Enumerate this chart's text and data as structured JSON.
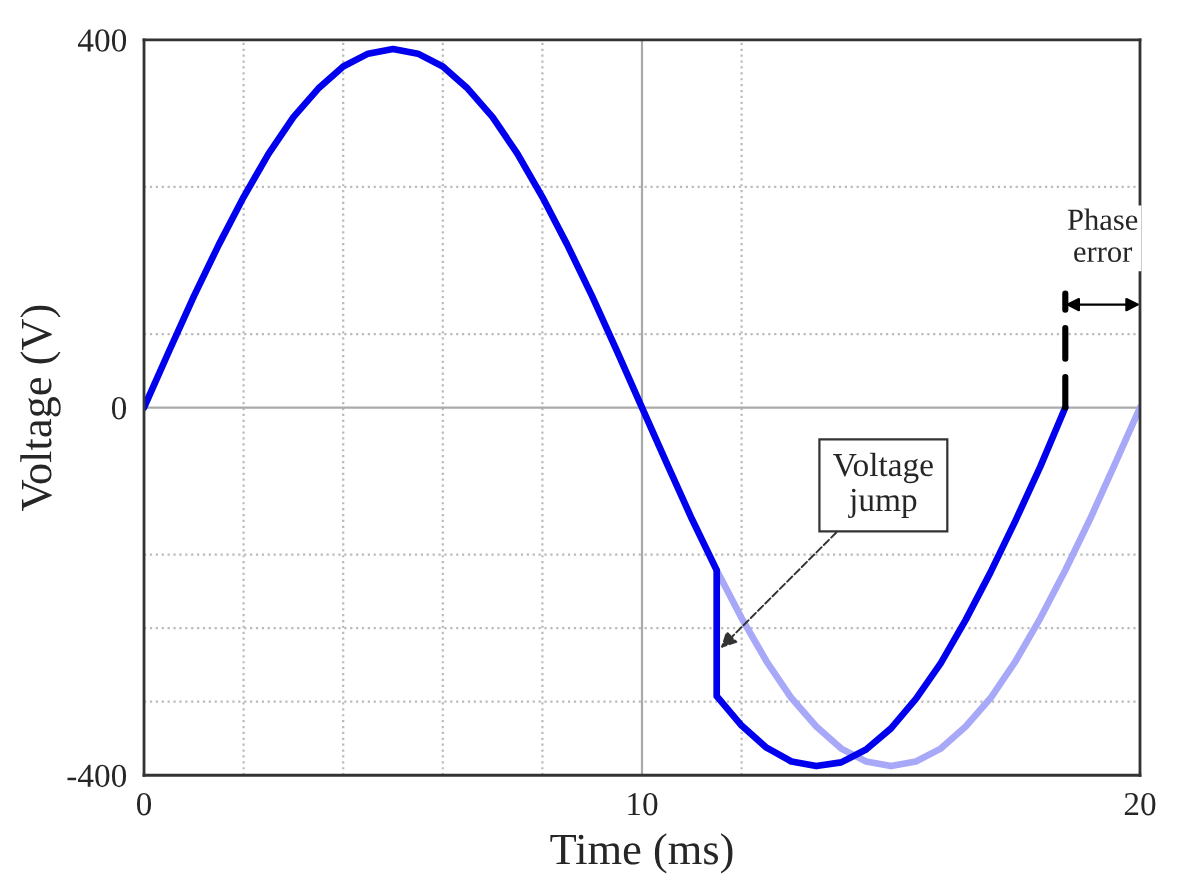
{
  "chart_data": {
    "type": "line",
    "xlabel": "Time (ms)",
    "ylabel": "Voltage (V)",
    "xlim": [
      0,
      20
    ],
    "ylim": [
      -400,
      400
    ],
    "xticks": [
      0,
      {
        "value": 2,
        "label": null
      },
      {
        "value": 4,
        "label": null
      },
      {
        "value": 6,
        "label": null
      },
      {
        "value": 8,
        "label": null
      },
      10,
      {
        "value": 12,
        "label": null
      },
      20
    ],
    "yticks": [
      -400,
      {
        "value": -320,
        "label": null
      },
      {
        "value": -240,
        "label": null
      },
      {
        "value": -160,
        "label": null
      },
      0,
      {
        "value": 80,
        "label": null
      },
      {
        "value": 240,
        "label": null
      },
      400
    ],
    "grid": true,
    "legend": false,
    "marker": "none",
    "line_style": "solid",
    "series": [
      {
        "color": "#a8a8f8",
        "x": [
          11.5,
          12,
          12.5,
          13,
          13.5,
          14,
          14.5,
          15,
          15.5,
          16,
          16.5,
          17,
          17.5,
          18,
          18.5,
          19,
          19.5,
          20
        ],
        "values": [
          -177,
          -229,
          -276,
          -316,
          -347,
          -371,
          -385,
          -390,
          -385,
          -371,
          -347,
          -316,
          -276,
          -229,
          -177,
          -121,
          -61,
          0
        ]
      },
      {
        "color": "#0000ee",
        "x": [
          0,
          0.5,
          1,
          1.5,
          2,
          2.5,
          3,
          3.5,
          4,
          4.5,
          5,
          5.5,
          6,
          6.5,
          7,
          7.5,
          8,
          8.5,
          9,
          9.5,
          10,
          10.5,
          11,
          11.5,
          11.5,
          12,
          12.5,
          13,
          13.5,
          14,
          14.5,
          15,
          15.5,
          16,
          16.5,
          17,
          17.5,
          18,
          18.5
        ],
        "values": [
          0,
          61,
          121,
          177,
          229,
          276,
          316,
          347,
          371,
          385,
          390,
          385,
          371,
          347,
          316,
          276,
          229,
          177,
          121,
          61,
          0,
          -61,
          -121,
          -177,
          -314,
          -346,
          -370,
          -385,
          -390,
          -386,
          -372,
          -349,
          -317,
          -278,
          -231,
          -179,
          -123,
          -64,
          0
        ]
      }
    ],
    "annotations": [
      {
        "text": "Voltage\njump",
        "x": 11.5,
        "y": -266
      },
      {
        "text": "Phase\nerror",
        "x": 18.5,
        "y": 0
      }
    ]
  }
}
